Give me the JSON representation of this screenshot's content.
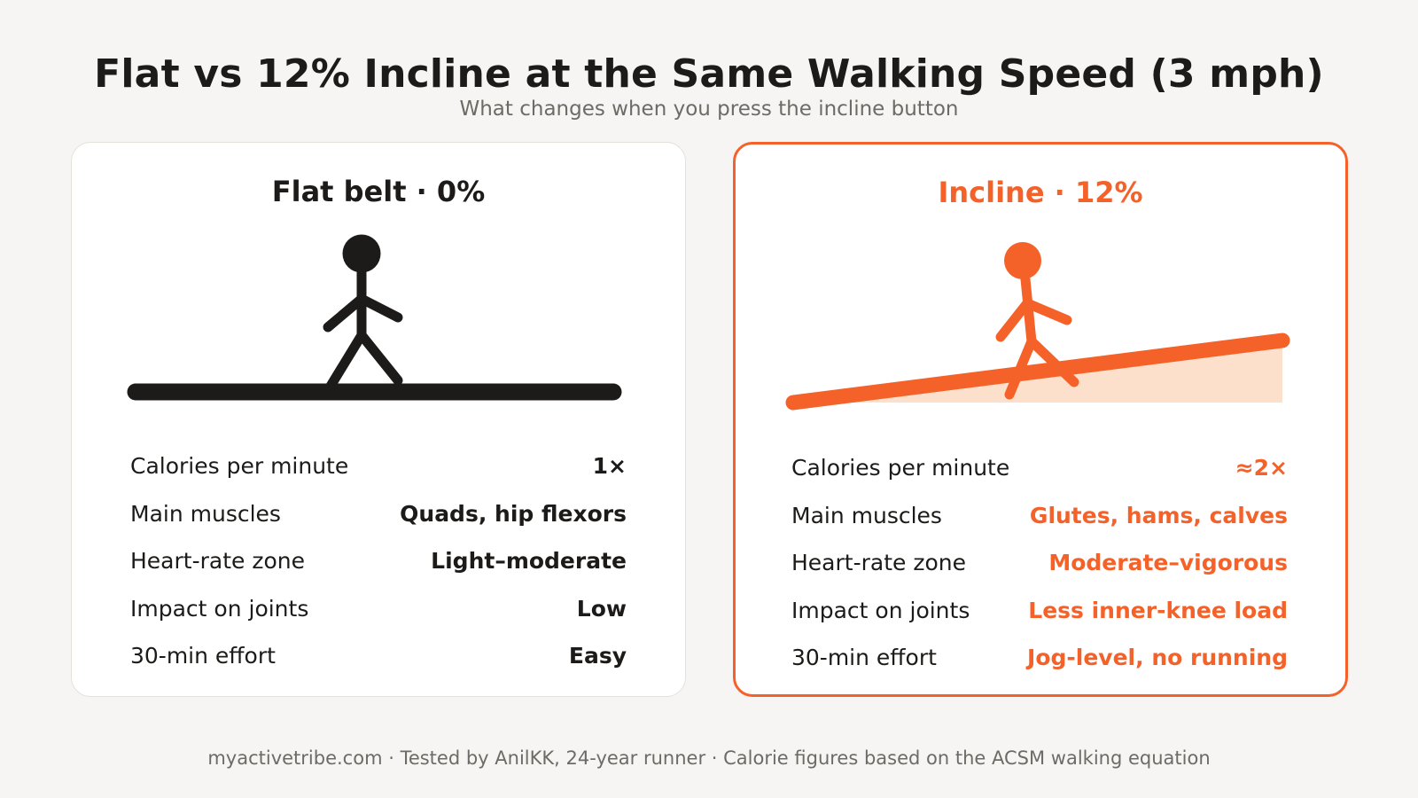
{
  "header": {
    "title": "Flat vs 12% Incline at the Same Walking Speed (3 mph)",
    "subtitle": "What changes when you press the incline button"
  },
  "colors": {
    "ink": "#1c1b19",
    "accent": "#f4622a",
    "accent_fill": "#fde0cc",
    "muted": "#6e6b66",
    "background": "#f6f5f3"
  },
  "flat": {
    "title": "Flat belt · 0%",
    "icon": "stick-figure-walking-flat",
    "rows": [
      {
        "label": "Calories per minute",
        "value": "1×"
      },
      {
        "label": "Main muscles",
        "value": "Quads, hip flexors"
      },
      {
        "label": "Heart-rate zone",
        "value": "Light–moderate"
      },
      {
        "label": "Impact on joints",
        "value": "Low"
      },
      {
        "label": "30-min effort",
        "value": "Easy"
      }
    ]
  },
  "incline": {
    "title": "Incline · 12%",
    "icon": "stick-figure-walking-incline",
    "rows": [
      {
        "label": "Calories per minute",
        "value": "≈2×"
      },
      {
        "label": "Main muscles",
        "value": "Glutes, hams, calves"
      },
      {
        "label": "Heart-rate zone",
        "value": "Moderate–vigorous"
      },
      {
        "label": "Impact on joints",
        "value": "Less inner-knee load"
      },
      {
        "label": "30-min effort",
        "value": "Jog-level, no running"
      }
    ]
  },
  "footer": {
    "text": "myactivetribe.com · Tested by AnilKK, 24-year runner · Calorie figures based on the ACSM walking equation"
  }
}
